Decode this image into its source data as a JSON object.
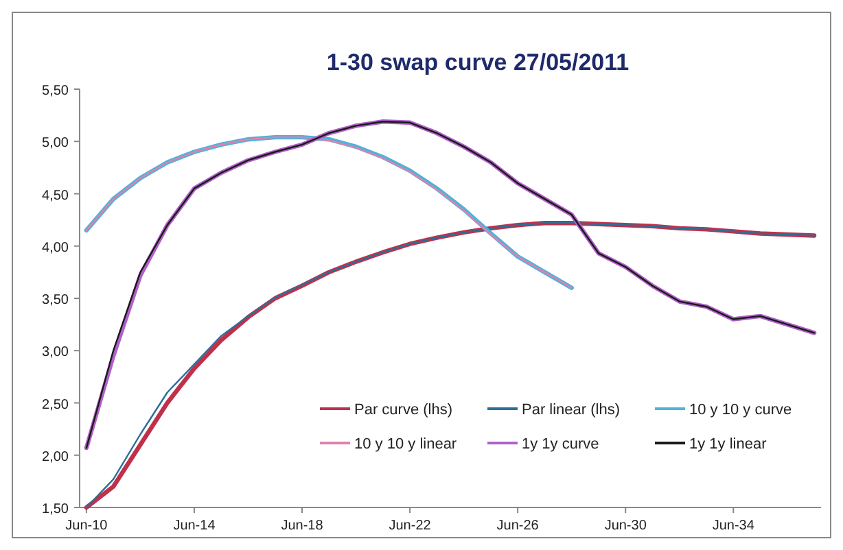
{
  "chart_data": {
    "type": "line",
    "title": "1-30 swap curve  27/05/2011",
    "x": [
      "2010-06",
      "2011-06",
      "2012-06",
      "2013-06",
      "2014-06",
      "2015-06",
      "2016-06",
      "2017-06",
      "2018-06",
      "2019-06",
      "2020-06",
      "2021-06",
      "2022-06",
      "2023-06",
      "2024-06",
      "2025-06",
      "2026-06",
      "2027-06",
      "2028-06",
      "2029-06",
      "2030-06",
      "2031-06",
      "2032-06",
      "2033-06",
      "2034-06",
      "2035-06",
      "2036-06",
      "2037-06"
    ],
    "series": [
      {
        "name": "Par curve (lhs)",
        "color": "#c0304a",
        "values": [
          1.5,
          1.7,
          2.1,
          2.5,
          2.83,
          3.1,
          3.32,
          3.5,
          3.62,
          3.75,
          3.85,
          3.94,
          4.02,
          4.08,
          4.13,
          4.17,
          4.2,
          4.22,
          4.22,
          4.21,
          4.2,
          4.19,
          4.17,
          4.16,
          4.14,
          4.12,
          4.11,
          4.1
        ]
      },
      {
        "name": "Par linear (lhs)",
        "color": "#2a6f97",
        "values": [
          1.5,
          1.77,
          2.2,
          2.6,
          2.87,
          3.14,
          3.33,
          3.51,
          3.63,
          3.75,
          3.85,
          3.94,
          4.02,
          4.08,
          4.13,
          4.17,
          4.2,
          4.22,
          4.22,
          4.21,
          4.2,
          4.19,
          4.17,
          4.16,
          4.14,
          4.12,
          4.11,
          4.1
        ]
      },
      {
        "name": "10 y 10 y curve",
        "color": "#4fb3d9",
        "values": [
          4.15,
          4.45,
          4.65,
          4.8,
          4.9,
          4.97,
          5.02,
          5.04,
          5.04,
          5.02,
          4.95,
          4.85,
          4.72,
          4.55,
          4.35,
          4.12,
          3.9,
          3.75,
          3.6,
          null,
          null,
          null,
          null,
          null,
          null,
          null,
          null,
          null
        ]
      },
      {
        "name": "10 y 10 y linear",
        "color": "#e080b0",
        "values": [
          4.15,
          4.45,
          4.65,
          4.8,
          4.9,
          4.97,
          5.02,
          5.04,
          5.04,
          5.01,
          4.94,
          4.84,
          4.71,
          4.54,
          4.34,
          4.11,
          3.9,
          3.75,
          3.6,
          null,
          null,
          null,
          null,
          null,
          null,
          null,
          null,
          null
        ]
      },
      {
        "name": "1y 1y curve",
        "color": "#b060c8",
        "values": [
          2.07,
          2.95,
          3.72,
          4.2,
          4.55,
          4.7,
          4.82,
          4.9,
          4.97,
          5.08,
          5.15,
          5.19,
          5.18,
          5.08,
          4.95,
          4.8,
          4.6,
          4.45,
          4.3,
          3.93,
          3.8,
          3.62,
          3.47,
          3.42,
          3.3,
          3.33,
          3.25,
          3.17
        ]
      },
      {
        "name": "1y 1y linear",
        "color": "#1a1a1a",
        "values": [
          2.07,
          3.0,
          3.75,
          4.2,
          4.55,
          4.7,
          4.82,
          4.9,
          4.97,
          5.08,
          5.15,
          5.19,
          5.18,
          5.08,
          4.95,
          4.8,
          4.6,
          4.45,
          4.3,
          3.93,
          3.8,
          3.62,
          3.47,
          3.42,
          3.3,
          3.33,
          3.25,
          3.17
        ]
      }
    ],
    "xlim": [
      "2010-03",
      "2037-09"
    ],
    "xticks": [
      {
        "value": "2010-06",
        "label": "Jun-10"
      },
      {
        "value": "2014-06",
        "label": "Jun-14"
      },
      {
        "value": "2018-06",
        "label": "Jun-18"
      },
      {
        "value": "2022-06",
        "label": "Jun-22"
      },
      {
        "value": "2026-06",
        "label": "Jun-26"
      },
      {
        "value": "2030-06",
        "label": "Jun-30"
      },
      {
        "value": "2034-06",
        "label": "Jun-34"
      }
    ],
    "ylim": [
      1.5,
      5.5
    ],
    "yticks": [
      {
        "value": 1.5,
        "label": "1,50"
      },
      {
        "value": 2,
        "label": "2,00"
      },
      {
        "value": 2.5,
        "label": "2,50"
      },
      {
        "value": 3,
        "label": "3,00"
      },
      {
        "value": 3.5,
        "label": "3,50"
      },
      {
        "value": 4,
        "label": "4,00"
      },
      {
        "value": 4.5,
        "label": "4,50"
      },
      {
        "value": 5,
        "label": "5,00"
      },
      {
        "value": 5.5,
        "label": "5,50"
      }
    ],
    "legend": "bottom right",
    "grid": false,
    "marker": "none",
    "line_style": "solid"
  }
}
